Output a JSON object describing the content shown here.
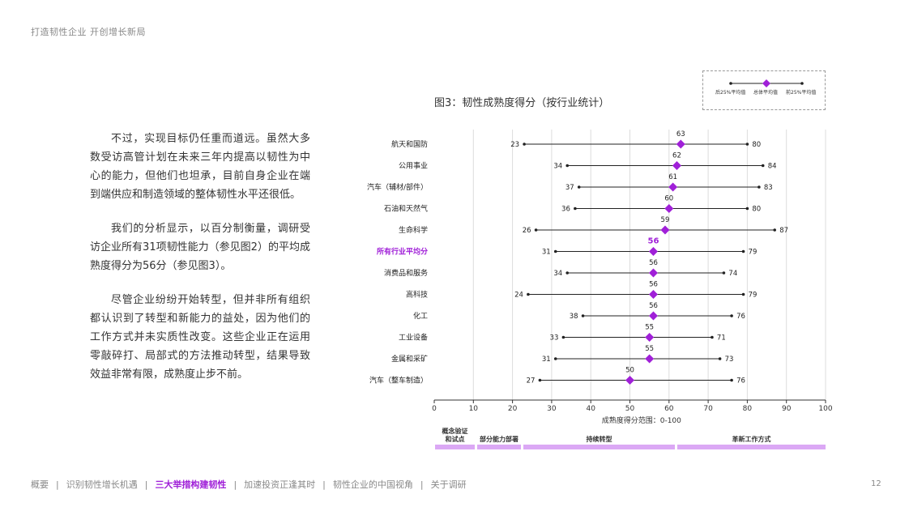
{
  "header": {
    "title": "打造韧性企业  开创增长新局"
  },
  "body_paragraphs": [
    "不过，实现目标仍任重而道远。虽然大多数受访高管计划在未来三年内提高以韧性为中心的能力，但他们也坦承，目前自身企业在端到端供应和制造领域的整体韧性水平还很低。",
    "我们的分析显示，以百分制衡量，调研受访企业所有31项韧性能力（参见图2）的平均成熟度得分为56分（参见图3）。",
    "尽管企业纷纷开始转型，但并非所有组织都认识到了转型和新能力的益处，因为他们的工作方式并未实质性改变。这些企业正在运用零敲碎打、局部式的方法推动转型，结果导致效益非常有限，成熟度止步不前。"
  ],
  "legend": {
    "bottom": "后25%平均值",
    "overall": "总体平均值",
    "top": "前25%平均值"
  },
  "chart_data": {
    "type": "dot-range",
    "title": "图3：韧性成熟度得分（按行业统计）",
    "xlabel": "成熟度得分范围：0-100",
    "xlim": [
      0,
      100
    ],
    "xticks": [
      0,
      10,
      20,
      30,
      40,
      50,
      60,
      70,
      80,
      90,
      100
    ],
    "grid": true,
    "legend_position": "top-right",
    "highlight_color": "#a020d8",
    "marker_color": "#a020d8",
    "line_color": "#222222",
    "rows": [
      {
        "label": "航天和国防",
        "low": 23,
        "avg": 63,
        "high": 80
      },
      {
        "label": "公用事业",
        "low": 34,
        "avg": 62,
        "high": 84
      },
      {
        "label": "汽车（辅材/部件）",
        "low": 37,
        "avg": 61,
        "high": 83
      },
      {
        "label": "石油和天然气",
        "low": 36,
        "avg": 60,
        "high": 80
      },
      {
        "label": "生命科学",
        "low": 26,
        "avg": 59,
        "high": 87
      },
      {
        "label": "所有行业平均分",
        "low": 31,
        "avg": 56,
        "high": 79,
        "highlight": true
      },
      {
        "label": "消费品和服务",
        "low": 34,
        "avg": 56,
        "high": 74
      },
      {
        "label": "高科技",
        "low": 24,
        "avg": 56,
        "high": 79
      },
      {
        "label": "化工",
        "low": 38,
        "avg": 56,
        "high": 76
      },
      {
        "label": "工业设备",
        "low": 33,
        "avg": 55,
        "high": 71
      },
      {
        "label": "金属和采矿",
        "low": 31,
        "avg": 55,
        "high": 73
      },
      {
        "label": "汽车（整车制造）",
        "low": 27,
        "avg": 50,
        "high": 76
      }
    ],
    "stages": [
      {
        "label": "概念验证\n和试点",
        "from": 0,
        "to": 10
      },
      {
        "label": "部分能力部署",
        "from": 10,
        "to": 22
      },
      {
        "label": "持续转型",
        "from": 22,
        "to": 62
      },
      {
        "label": "革新工作方式",
        "from": 62,
        "to": 100
      }
    ]
  },
  "footer": {
    "nav": [
      {
        "label": "概要",
        "active": false
      },
      {
        "label": "识别韧性增长机遇",
        "active": false
      },
      {
        "label": "三大举措构建韧性",
        "active": true
      },
      {
        "label": "加速投资正逢其时",
        "active": false
      },
      {
        "label": "韧性企业的中国视角",
        "active": false
      },
      {
        "label": "关于调研",
        "active": false
      }
    ],
    "page_number": "12"
  }
}
